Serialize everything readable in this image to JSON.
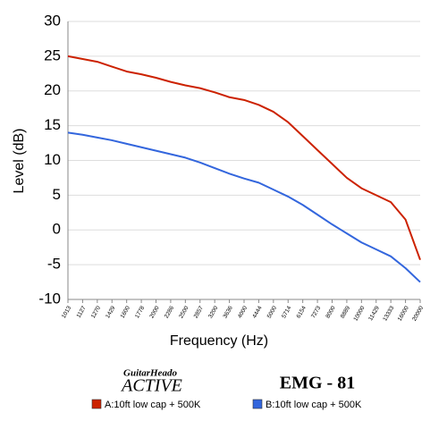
{
  "chart_data": {
    "type": "line",
    "x_label": "Frequency (Hz)",
    "y_label": "Level (dB)",
    "categories": [
      "1013",
      "1127",
      "1270",
      "1429",
      "1600",
      "1778",
      "2000",
      "2286",
      "2500",
      "2857",
      "3200",
      "3636",
      "4000",
      "4444",
      "5000",
      "5714",
      "6154",
      "7273",
      "8000",
      "8889",
      "10000",
      "11429",
      "13333",
      "16000",
      "20000"
    ],
    "series": [
      {
        "name": "A:10ft low cap + 500K",
        "color": "#cc2200",
        "values": [
          25,
          24.6,
          24.2,
          23.5,
          22.8,
          22.4,
          21.9,
          21.3,
          20.8,
          20.4,
          19.8,
          19.1,
          18.7,
          18,
          17,
          15.5,
          13.5,
          11.5,
          9.5,
          7.5,
          6,
          5,
          4,
          1.5,
          -4.3
        ]
      },
      {
        "name": "B:10ft low cap + 500K",
        "color": "#3366dd",
        "values": [
          14,
          13.7,
          13.3,
          12.9,
          12.4,
          11.9,
          11.4,
          10.9,
          10.4,
          9.7,
          8.9,
          8.1,
          7.4,
          6.8,
          5.8,
          4.8,
          3.6,
          2.2,
          0.8,
          -0.5,
          -1.8,
          -2.8,
          -3.8,
          -5.5,
          -7.5
        ]
      }
    ],
    "ylim": [
      -10,
      30
    ],
    "yticks": [
      -10,
      -5,
      0,
      5,
      10,
      15,
      20,
      25,
      30
    ],
    "grid": true,
    "brand": [
      "GuitarHeado",
      "ACTIVE"
    ],
    "model": "EMG - 81"
  }
}
